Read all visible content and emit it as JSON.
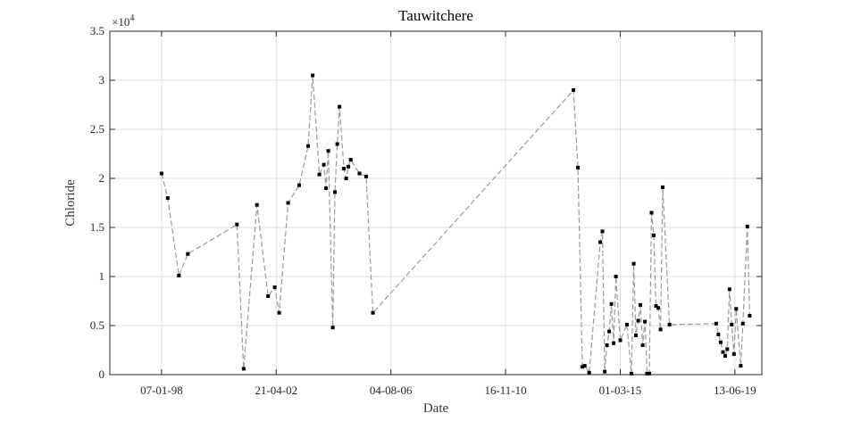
{
  "chart_data": {
    "type": "line",
    "title": "Tauwitchere",
    "xlabel": "Date",
    "ylabel": "Chloride",
    "y_exponent_label": "×10",
    "y_exponent_power": "4",
    "ylim": [
      0,
      35000
    ],
    "y_ticks": [
      {
        "value": 0,
        "label": "0"
      },
      {
        "value": 5000,
        "label": "0.5"
      },
      {
        "value": 10000,
        "label": "1"
      },
      {
        "value": 15000,
        "label": "1.5"
      },
      {
        "value": 20000,
        "label": "2"
      },
      {
        "value": 25000,
        "label": "2.5"
      },
      {
        "value": 30000,
        "label": "3"
      },
      {
        "value": 35000,
        "label": "3.5"
      }
    ],
    "xlim": [
      "1996-02-01",
      "2020-06-15"
    ],
    "x_ticks": [
      {
        "value": "1998-01-07",
        "label": "07-01-98"
      },
      {
        "value": "2002-04-21",
        "label": "21-04-02"
      },
      {
        "value": "2006-08-04",
        "label": "04-08-06"
      },
      {
        "value": "2010-11-16",
        "label": "16-11-10"
      },
      {
        "value": "2015-03-01",
        "label": "01-03-15"
      },
      {
        "value": "2019-06-13",
        "label": "13-06-19"
      }
    ],
    "grid": true,
    "line_style": "dashed",
    "line_color": "#999999",
    "marker_color": "#000000",
    "series": [
      {
        "x": [
          "1998-01-07",
          "1998-04-01",
          "1998-09-01",
          "1999-01-01",
          "2000-11-01",
          "2001-02-01",
          "2001-08-01",
          "2002-01-01",
          "2002-04-01",
          "2002-06-01",
          "2002-10-01",
          "2003-03-01",
          "2003-07-01",
          "2003-09-01",
          "2003-12-01",
          "2004-02-01",
          "2004-03-01",
          "2004-04-01",
          "2004-06-01",
          "2004-07-01",
          "2004-08-01",
          "2004-09-01",
          "2004-11-01",
          "2004-12-01",
          "2005-01-01",
          "2005-02-01",
          "2005-06-01",
          "2005-09-01",
          "2005-12-01",
          "2013-06-01",
          "2013-08-01",
          "2013-10-01",
          "2013-11-01",
          "2014-01-01",
          "2014-06-01",
          "2014-07-01",
          "2014-08-01",
          "2014-09-01",
          "2014-10-01",
          "2014-11-01",
          "2014-12-01",
          "2015-01-01",
          "2015-03-01",
          "2015-06-01",
          "2015-08-01",
          "2015-09-01",
          "2015-10-01",
          "2015-11-01",
          "2015-12-01",
          "2016-01-01",
          "2016-02-01",
          "2016-03-01",
          "2016-04-01",
          "2016-05-01",
          "2016-06-01",
          "2016-07-01",
          "2016-08-01",
          "2016-09-01",
          "2016-10-01",
          "2017-01-01",
          "2018-10-01",
          "2018-11-01",
          "2018-12-01",
          "2019-01-01",
          "2019-02-01",
          "2019-03-01",
          "2019-04-01",
          "2019-05-01",
          "2019-06-01",
          "2019-07-01",
          "2019-09-01",
          "2019-10-01",
          "2019-12-01",
          "2020-01-01"
        ],
        "values": [
          20500,
          18000,
          10100,
          12300,
          15300,
          600,
          17300,
          8000,
          8900,
          6300,
          17500,
          19300,
          23300,
          30500,
          20400,
          21400,
          19000,
          22800,
          4800,
          18600,
          23500,
          27300,
          21000,
          20000,
          21200,
          21900,
          20500,
          20200,
          6300,
          29000,
          21100,
          800,
          900,
          200,
          13500,
          14600,
          300,
          3000,
          4400,
          7200,
          3200,
          10000,
          3500,
          5100,
          100,
          11300,
          4000,
          5500,
          7100,
          3000,
          5400,
          100,
          100,
          16500,
          14200,
          7000,
          6800,
          4600,
          19100,
          5100,
          5200,
          4100,
          3300,
          2300,
          1900,
          2600,
          8700,
          5100,
          2100,
          6700,
          900,
          5200,
          15100,
          6000
        ]
      }
    ]
  }
}
